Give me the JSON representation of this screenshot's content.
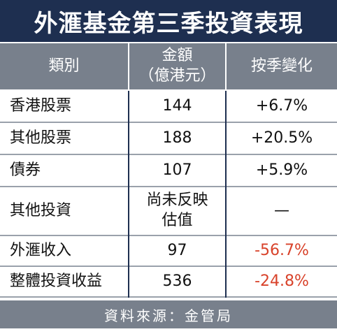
{
  "header": {
    "title": "外滙基金第三季投資表現"
  },
  "table": {
    "columns": [
      "類別",
      "金額\n（億港元）",
      "按季變化"
    ],
    "rows": [
      [
        "香港股票",
        "144",
        "+6.7%"
      ],
      [
        "其他股票",
        "188",
        "+20.5%"
      ],
      [
        "債券",
        "107",
        "+5.9%"
      ],
      [
        "其他投資",
        "尚未反映\n估值",
        "—"
      ],
      [
        "外滙收入",
        "97",
        "-56.7%"
      ],
      [
        "整體投資收益",
        "536",
        "-24.8%"
      ]
    ]
  },
  "footer": {
    "source": "資料來源：金管局"
  }
}
